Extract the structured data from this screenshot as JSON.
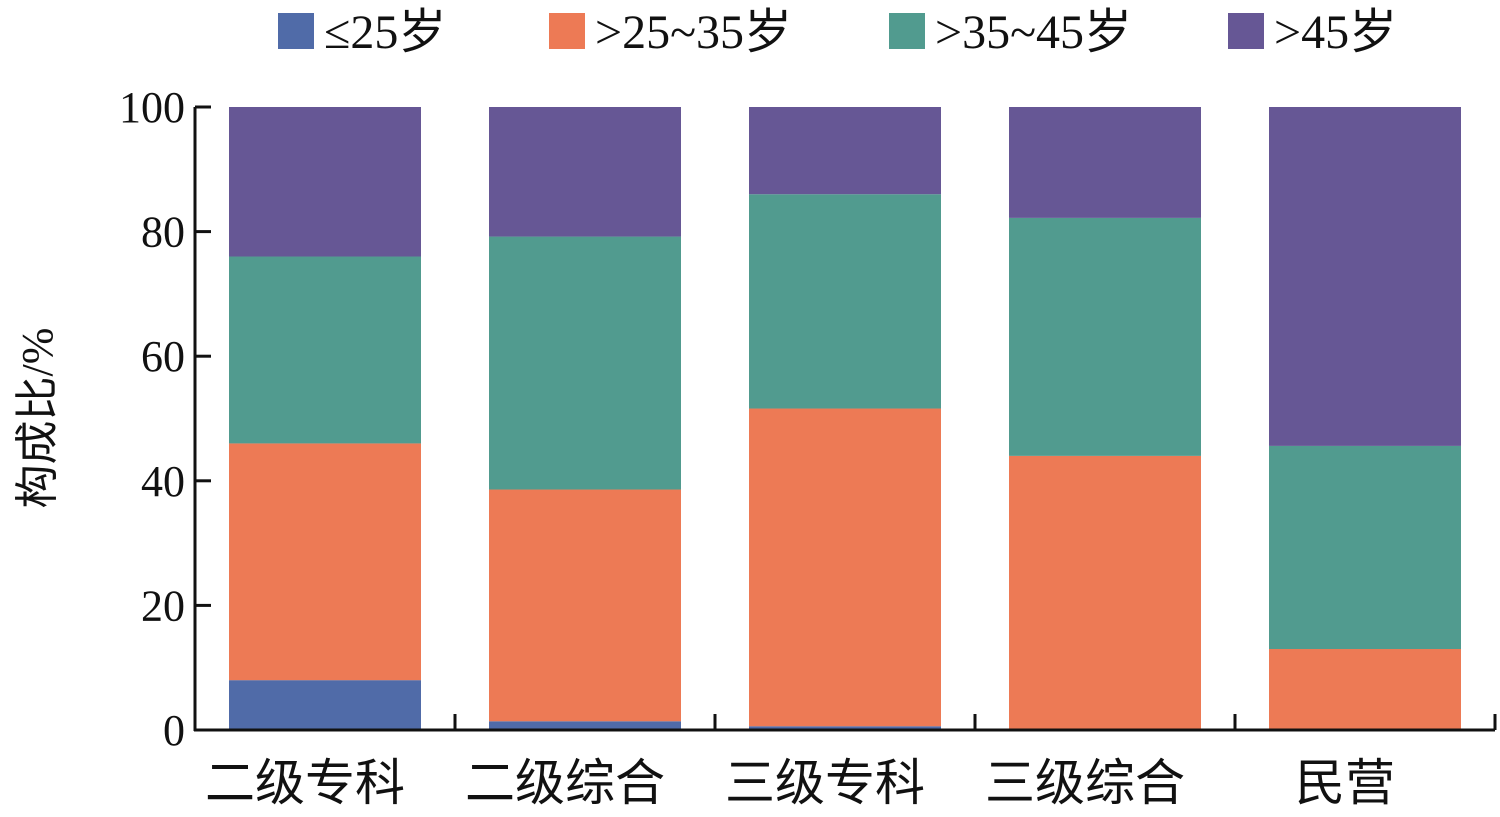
{
  "chart_data": {
    "type": "bar",
    "stacked": true,
    "title": "",
    "xlabel": "",
    "ylabel": "构成比/%",
    "ylim": [
      0,
      100
    ],
    "yticks": [
      "0",
      "20",
      "40",
      "60",
      "80",
      "100"
    ],
    "grid": false,
    "legend_position": "top",
    "categories": [
      "二级专科",
      "二级综合",
      "三级专科",
      "三级综合",
      "民营"
    ],
    "series": [
      {
        "name": "≤25岁",
        "color": "#506BA8",
        "values": [
          8.0,
          1.4,
          0.6,
          0.0,
          0.0
        ]
      },
      {
        "name": ">25~35岁",
        "color": "#ED7A55",
        "values": [
          38.0,
          37.2,
          51.0,
          44.0,
          13.0
        ]
      },
      {
        "name": ">35~45岁",
        "color": "#519B8F",
        "values": [
          30.0,
          40.6,
          34.4,
          38.2,
          32.6
        ]
      },
      {
        "name": ">45岁",
        "color": "#665795",
        "values": [
          24.0,
          20.8,
          14.0,
          17.8,
          54.4
        ]
      }
    ]
  }
}
